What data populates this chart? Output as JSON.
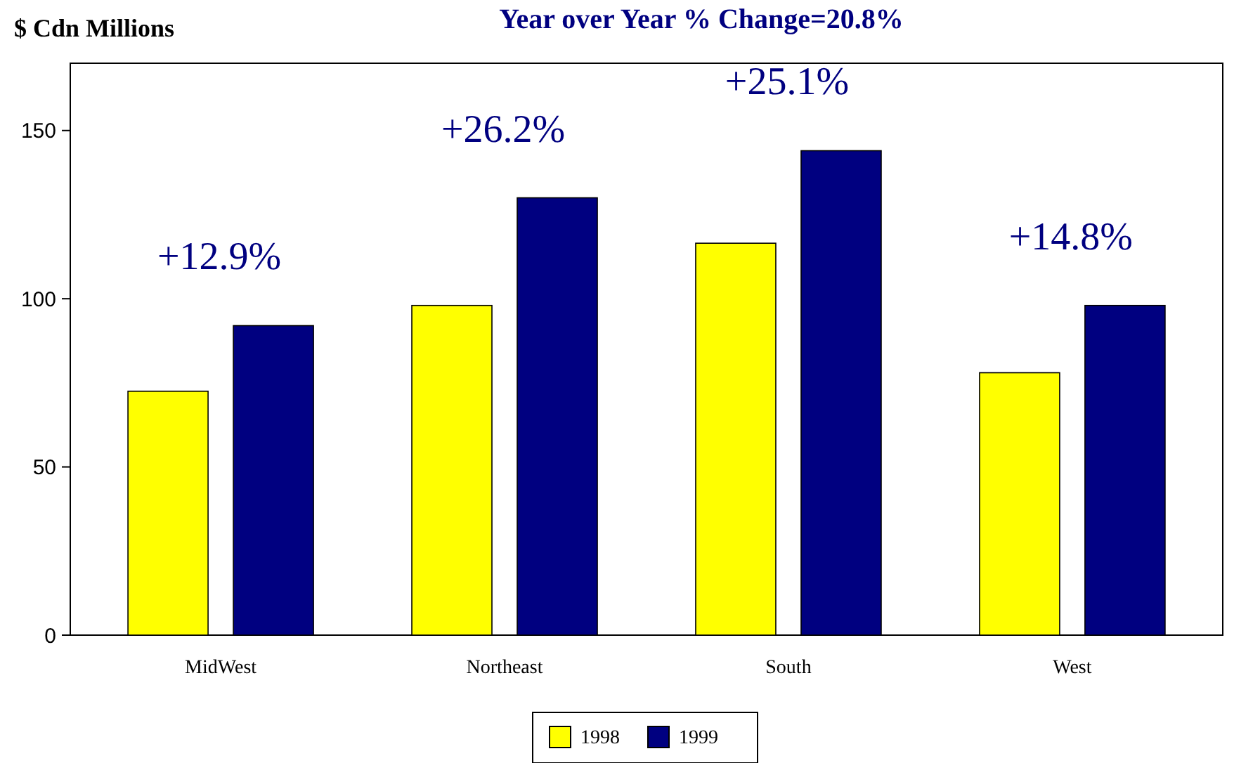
{
  "chart_data": {
    "type": "bar",
    "title": "Year over Year % Change=20.8%",
    "ylabel": "$ Cdn Millions",
    "categories": [
      "MidWest",
      "Northeast",
      "South",
      "West"
    ],
    "series": [
      {
        "name": "1998",
        "color": "#ffff00",
        "values": [
          72.5,
          98,
          116.5,
          78
        ]
      },
      {
        "name": "1999",
        "color": "#000080",
        "values": [
          92,
          130,
          144,
          98
        ]
      }
    ],
    "ylim": [
      0,
      170
    ],
    "yticks": [
      0,
      50,
      100,
      150
    ],
    "grid": false,
    "legend": "bottom",
    "annotations": [
      "+12.9%",
      "+26.2%",
      "+25.1%",
      "+14.8%"
    ]
  }
}
